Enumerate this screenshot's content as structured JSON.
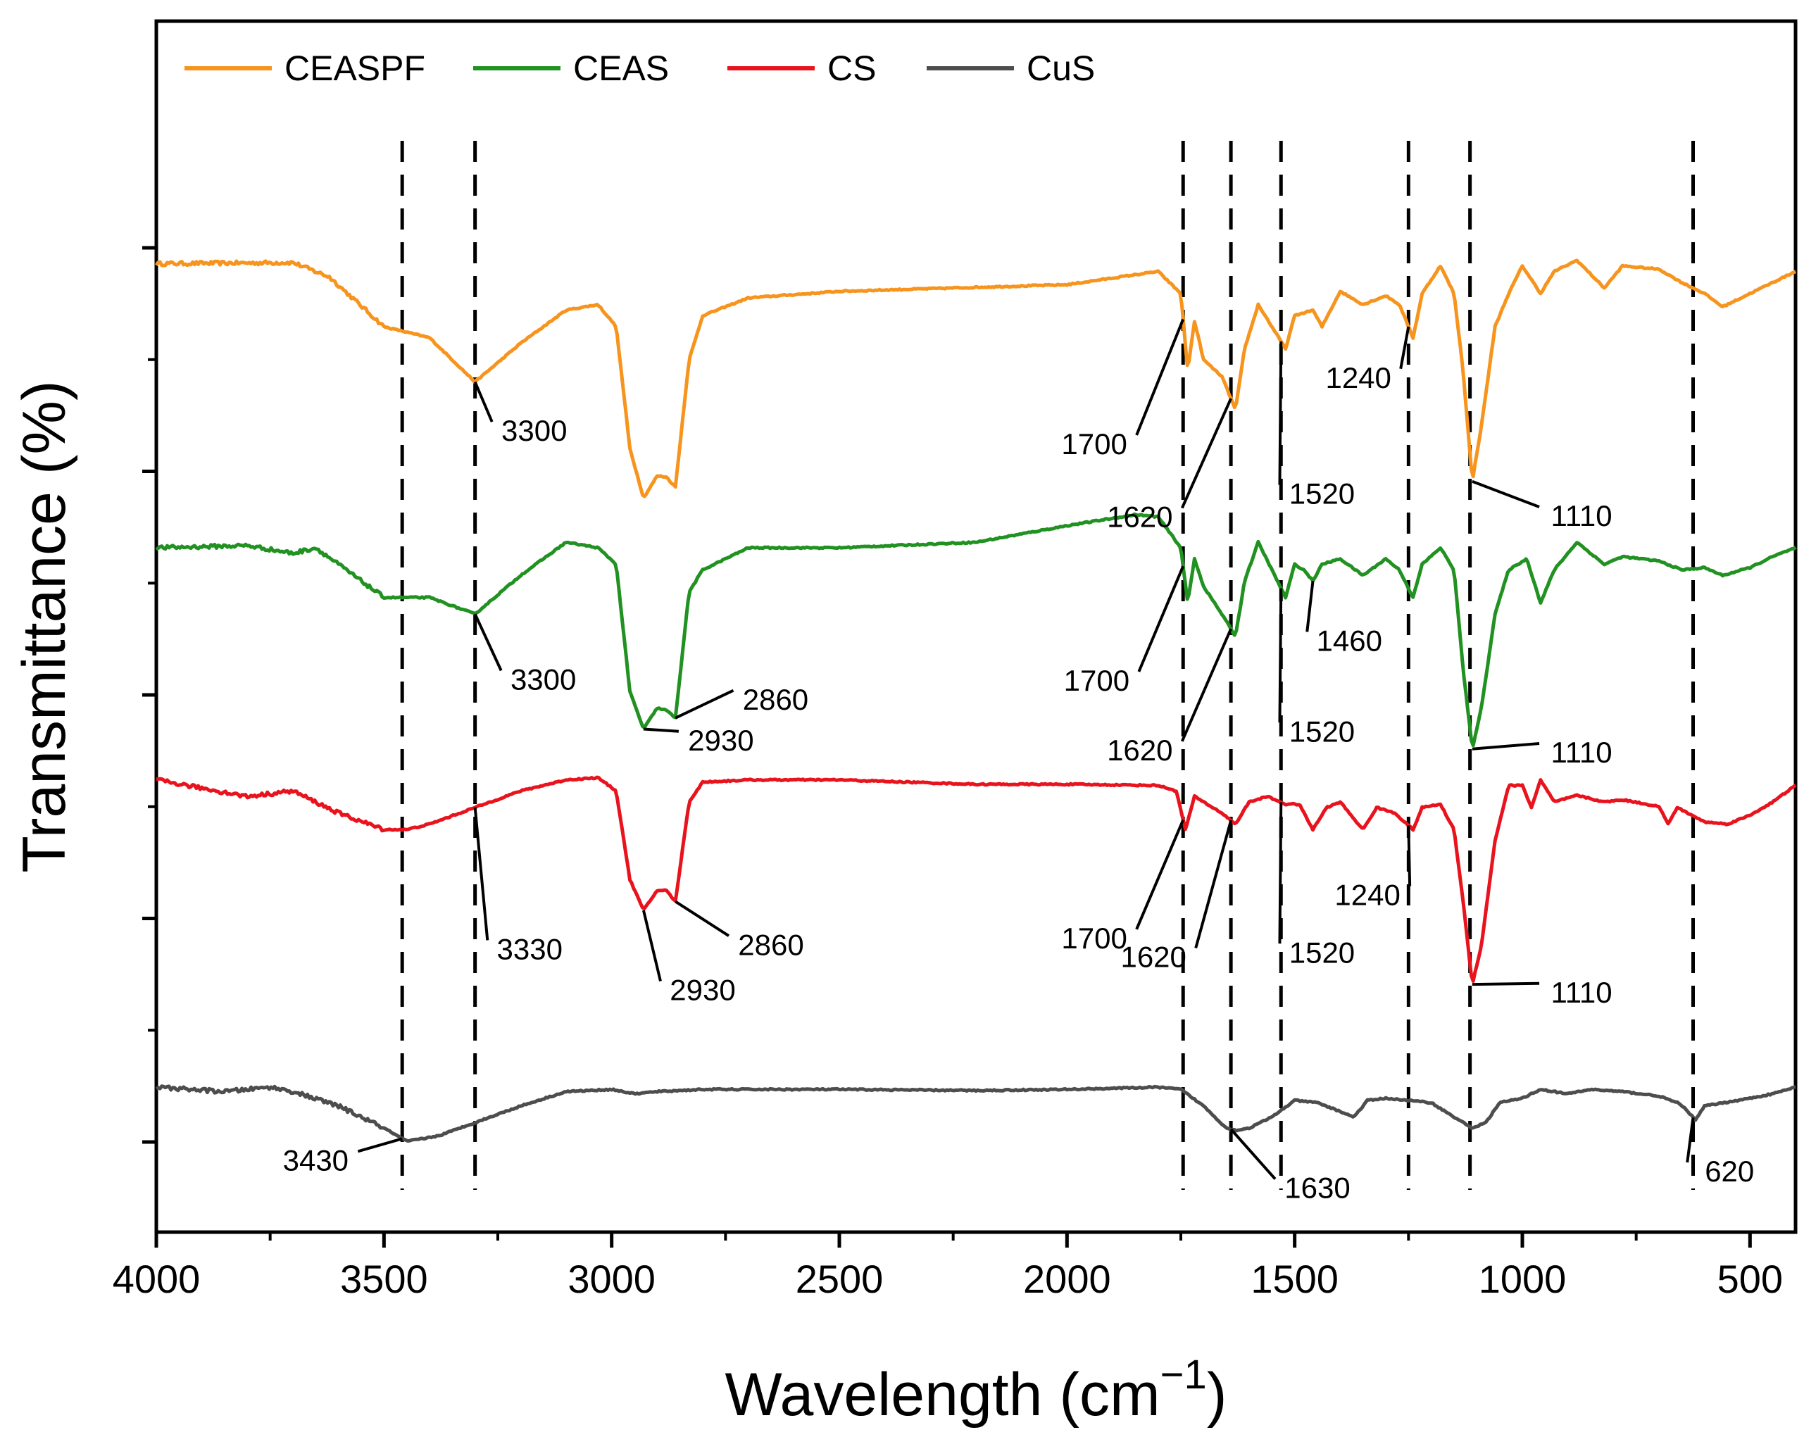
{
  "chart_data": {
    "type": "line",
    "title": "",
    "xlabel": "Wavelength (cm",
    "xlabel_superscript": "−1",
    "xlabel_close": ")",
    "ylabel": "Transmittance (%)",
    "xlim": [
      4000,
      400
    ],
    "x_ticks": [
      4000,
      3500,
      3000,
      2500,
      2000,
      1500,
      1000,
      500
    ],
    "x_tick_labels": [
      "4000",
      "3500",
      "3000",
      "2500",
      "2000",
      "1500",
      "1000",
      "500"
    ],
    "y_ticks_shown": false,
    "legend_position": "top-left",
    "series": [
      {
        "name": "CEASPF",
        "color": "#f7941d",
        "baseline": 0.857,
        "points": [
          [
            4000,
            0.857
          ],
          [
            3700,
            0.858
          ],
          [
            3620,
            0.845
          ],
          [
            3500,
            0.8
          ],
          [
            3400,
            0.79
          ],
          [
            3300,
            0.75
          ],
          [
            3200,
            0.785
          ],
          [
            3100,
            0.815
          ],
          [
            3030,
            0.82
          ],
          [
            2990,
            0.8
          ],
          [
            2960,
            0.69
          ],
          [
            2930,
            0.645
          ],
          [
            2900,
            0.665
          ],
          [
            2880,
            0.664
          ],
          [
            2860,
            0.655
          ],
          [
            2830,
            0.77
          ],
          [
            2800,
            0.81
          ],
          [
            2700,
            0.826
          ],
          [
            2500,
            0.832
          ],
          [
            2000,
            0.838
          ],
          [
            1800,
            0.85
          ],
          [
            1750,
            0.83
          ],
          [
            1735,
            0.76
          ],
          [
            1720,
            0.805
          ],
          [
            1700,
            0.77
          ],
          [
            1660,
            0.755
          ],
          [
            1630,
            0.725
          ],
          [
            1610,
            0.78
          ],
          [
            1580,
            0.82
          ],
          [
            1550,
            0.8
          ],
          [
            1520,
            0.78
          ],
          [
            1500,
            0.81
          ],
          [
            1460,
            0.815
          ],
          [
            1440,
            0.8
          ],
          [
            1400,
            0.832
          ],
          [
            1350,
            0.82
          ],
          [
            1300,
            0.828
          ],
          [
            1270,
            0.82
          ],
          [
            1240,
            0.79
          ],
          [
            1220,
            0.83
          ],
          [
            1180,
            0.855
          ],
          [
            1150,
            0.83
          ],
          [
            1130,
            0.76
          ],
          [
            1110,
            0.66
          ],
          [
            1090,
            0.71
          ],
          [
            1060,
            0.8
          ],
          [
            1030,
            0.83
          ],
          [
            1000,
            0.855
          ],
          [
            960,
            0.83
          ],
          [
            930,
            0.85
          ],
          [
            880,
            0.86
          ],
          [
            820,
            0.835
          ],
          [
            780,
            0.855
          ],
          [
            700,
            0.852
          ],
          [
            650,
            0.84
          ],
          [
            600,
            0.83
          ],
          [
            560,
            0.818
          ],
          [
            500,
            0.83
          ],
          [
            450,
            0.84
          ],
          [
            400,
            0.85
          ]
        ]
      },
      {
        "name": "CEAS",
        "color": "#219221",
        "baseline": 0.6,
        "points": [
          [
            4000,
            0.6
          ],
          [
            3800,
            0.602
          ],
          [
            3700,
            0.595
          ],
          [
            3650,
            0.6
          ],
          [
            3600,
            0.585
          ],
          [
            3500,
            0.555
          ],
          [
            3400,
            0.555
          ],
          [
            3300,
            0.54
          ],
          [
            3200,
            0.575
          ],
          [
            3100,
            0.605
          ],
          [
            3030,
            0.6
          ],
          [
            2990,
            0.585
          ],
          [
            2960,
            0.47
          ],
          [
            2930,
            0.436
          ],
          [
            2900,
            0.455
          ],
          [
            2880,
            0.453
          ],
          [
            2860,
            0.446
          ],
          [
            2830,
            0.56
          ],
          [
            2800,
            0.58
          ],
          [
            2700,
            0.6
          ],
          [
            2500,
            0.6
          ],
          [
            2200,
            0.605
          ],
          [
            2000,
            0.62
          ],
          [
            1850,
            0.63
          ],
          [
            1800,
            0.628
          ],
          [
            1750,
            0.6
          ],
          [
            1735,
            0.55
          ],
          [
            1720,
            0.59
          ],
          [
            1700,
            0.565
          ],
          [
            1660,
            0.54
          ],
          [
            1630,
            0.52
          ],
          [
            1610,
            0.57
          ],
          [
            1580,
            0.605
          ],
          [
            1550,
            0.58
          ],
          [
            1520,
            0.555
          ],
          [
            1500,
            0.585
          ],
          [
            1480,
            0.58
          ],
          [
            1460,
            0.57
          ],
          [
            1440,
            0.585
          ],
          [
            1400,
            0.59
          ],
          [
            1350,
            0.575
          ],
          [
            1300,
            0.59
          ],
          [
            1270,
            0.58
          ],
          [
            1240,
            0.555
          ],
          [
            1220,
            0.585
          ],
          [
            1180,
            0.6
          ],
          [
            1150,
            0.58
          ],
          [
            1130,
            0.49
          ],
          [
            1110,
            0.418
          ],
          [
            1090,
            0.455
          ],
          [
            1060,
            0.54
          ],
          [
            1030,
            0.58
          ],
          [
            990,
            0.59
          ],
          [
            960,
            0.55
          ],
          [
            930,
            0.58
          ],
          [
            880,
            0.605
          ],
          [
            820,
            0.585
          ],
          [
            780,
            0.592
          ],
          [
            700,
            0.588
          ],
          [
            650,
            0.58
          ],
          [
            600,
            0.582
          ],
          [
            560,
            0.575
          ],
          [
            500,
            0.582
          ],
          [
            450,
            0.592
          ],
          [
            400,
            0.6
          ]
        ]
      },
      {
        "name": "CS",
        "color": "#e8131d",
        "baseline": 0.39,
        "points": [
          [
            4000,
            0.39
          ],
          [
            3800,
            0.375
          ],
          [
            3700,
            0.38
          ],
          [
            3650,
            0.37
          ],
          [
            3600,
            0.36
          ],
          [
            3500,
            0.345
          ],
          [
            3450,
            0.345
          ],
          [
            3400,
            0.35
          ],
          [
            3300,
            0.365
          ],
          [
            3200,
            0.38
          ],
          [
            3100,
            0.39
          ],
          [
            3030,
            0.392
          ],
          [
            2990,
            0.38
          ],
          [
            2960,
            0.3
          ],
          [
            2930,
            0.272
          ],
          [
            2900,
            0.29
          ],
          [
            2880,
            0.29
          ],
          [
            2860,
            0.28
          ],
          [
            2830,
            0.37
          ],
          [
            2800,
            0.388
          ],
          [
            2700,
            0.39
          ],
          [
            2500,
            0.39
          ],
          [
            2200,
            0.386
          ],
          [
            2000,
            0.386
          ],
          [
            1800,
            0.385
          ],
          [
            1760,
            0.38
          ],
          [
            1740,
            0.345
          ],
          [
            1720,
            0.375
          ],
          [
            1700,
            0.37
          ],
          [
            1660,
            0.36
          ],
          [
            1630,
            0.35
          ],
          [
            1600,
            0.37
          ],
          [
            1560,
            0.375
          ],
          [
            1520,
            0.368
          ],
          [
            1490,
            0.368
          ],
          [
            1460,
            0.345
          ],
          [
            1430,
            0.365
          ],
          [
            1400,
            0.37
          ],
          [
            1350,
            0.345
          ],
          [
            1320,
            0.365
          ],
          [
            1280,
            0.36
          ],
          [
            1240,
            0.345
          ],
          [
            1220,
            0.365
          ],
          [
            1180,
            0.368
          ],
          [
            1150,
            0.345
          ],
          [
            1130,
            0.28
          ],
          [
            1110,
            0.205
          ],
          [
            1090,
            0.24
          ],
          [
            1060,
            0.335
          ],
          [
            1030,
            0.385
          ],
          [
            1000,
            0.385
          ],
          [
            980,
            0.365
          ],
          [
            960,
            0.39
          ],
          [
            930,
            0.37
          ],
          [
            880,
            0.376
          ],
          [
            820,
            0.37
          ],
          [
            780,
            0.372
          ],
          [
            700,
            0.366
          ],
          [
            680,
            0.35
          ],
          [
            660,
            0.365
          ],
          [
            600,
            0.352
          ],
          [
            550,
            0.35
          ],
          [
            500,
            0.358
          ],
          [
            450,
            0.37
          ],
          [
            400,
            0.385
          ]
        ]
      },
      {
        "name": "CuS",
        "color": "#4d4d4d",
        "baseline": 0.11,
        "points": [
          [
            4000,
            0.112
          ],
          [
            3850,
            0.108
          ],
          [
            3750,
            0.112
          ],
          [
            3700,
            0.108
          ],
          [
            3600,
            0.095
          ],
          [
            3500,
            0.075
          ],
          [
            3450,
            0.063
          ],
          [
            3380,
            0.068
          ],
          [
            3300,
            0.08
          ],
          [
            3200,
            0.095
          ],
          [
            3100,
            0.108
          ],
          [
            3000,
            0.11
          ],
          [
            2950,
            0.106
          ],
          [
            2900,
            0.108
          ],
          [
            2800,
            0.11
          ],
          [
            2500,
            0.11
          ],
          [
            2200,
            0.109
          ],
          [
            2000,
            0.11
          ],
          [
            1800,
            0.112
          ],
          [
            1750,
            0.11
          ],
          [
            1700,
            0.095
          ],
          [
            1650,
            0.075
          ],
          [
            1630,
            0.073
          ],
          [
            1600,
            0.075
          ],
          [
            1550,
            0.085
          ],
          [
            1500,
            0.1
          ],
          [
            1450,
            0.098
          ],
          [
            1400,
            0.09
          ],
          [
            1370,
            0.085
          ],
          [
            1340,
            0.1
          ],
          [
            1300,
            0.102
          ],
          [
            1250,
            0.1
          ],
          [
            1200,
            0.098
          ],
          [
            1150,
            0.085
          ],
          [
            1110,
            0.075
          ],
          [
            1080,
            0.08
          ],
          [
            1050,
            0.098
          ],
          [
            1000,
            0.102
          ],
          [
            960,
            0.11
          ],
          [
            900,
            0.106
          ],
          [
            850,
            0.11
          ],
          [
            780,
            0.108
          ],
          [
            700,
            0.104
          ],
          [
            660,
            0.098
          ],
          [
            640,
            0.092
          ],
          [
            620,
            0.082
          ],
          [
            600,
            0.095
          ],
          [
            500,
            0.102
          ],
          [
            450,
            0.106
          ],
          [
            400,
            0.112
          ]
        ]
      }
    ],
    "reference_lines": [
      3460,
      3300,
      1745,
      1640,
      1530,
      1250,
      1115,
      625
    ],
    "annotations": [
      {
        "label": "3300",
        "series": "CEASPF",
        "wn": 3300,
        "label_wn": 3170,
        "label_y": 0.705
      },
      {
        "label": "1700",
        "series": "CEASPF",
        "wn": 1745,
        "label_wn": 1940,
        "label_y": 0.693
      },
      {
        "label": "1620",
        "series": "CEASPF",
        "wn": 1640,
        "label_wn": 1840,
        "label_y": 0.627
      },
      {
        "label": "1520",
        "series": "CEASPF",
        "wn": 1530,
        "label_wn": 1440,
        "label_y": 0.648
      },
      {
        "label": "1240",
        "series": "CEASPF",
        "wn": 1250,
        "label_wn": 1360,
        "label_y": 0.753
      },
      {
        "label": "1110",
        "series": "CEASPF",
        "wn": 1110,
        "label_wn": 870,
        "label_y": 0.628
      },
      {
        "label": "3300",
        "series": "CEAS",
        "wn": 3300,
        "label_wn": 3150,
        "label_y": 0.48
      },
      {
        "label": "2860",
        "series": "CEAS",
        "wn": 2860,
        "label_wn": 2640,
        "label_y": 0.462
      },
      {
        "label": "2930",
        "series": "CEAS",
        "wn": 2930,
        "label_wn": 2760,
        "label_y": 0.425
      },
      {
        "label": "1700",
        "series": "CEAS",
        "wn": 1745,
        "label_wn": 1935,
        "label_y": 0.479
      },
      {
        "label": "1620",
        "series": "CEAS",
        "wn": 1640,
        "label_wn": 1840,
        "label_y": 0.416
      },
      {
        "label": "1460",
        "series": "CEAS",
        "wn": 1460,
        "label_wn": 1380,
        "label_y": 0.515
      },
      {
        "label": "1520",
        "series": "CEAS",
        "wn": 1530,
        "label_wn": 1440,
        "label_y": 0.433
      },
      {
        "label": "1110",
        "series": "CEAS",
        "wn": 1110,
        "label_wn": 870,
        "label_y": 0.414
      },
      {
        "label": "3330",
        "series": "CS",
        "wn": 3300,
        "label_wn": 3180,
        "label_y": 0.236
      },
      {
        "label": "2860",
        "series": "CS",
        "wn": 2860,
        "label_wn": 2650,
        "label_y": 0.24
      },
      {
        "label": "2930",
        "series": "CS",
        "wn": 2930,
        "label_wn": 2800,
        "label_y": 0.199
      },
      {
        "label": "1700",
        "series": "CS",
        "wn": 1745,
        "label_wn": 1940,
        "label_y": 0.246
      },
      {
        "label": "1620",
        "series": "CS",
        "wn": 1640,
        "label_wn": 1810,
        "label_y": 0.229
      },
      {
        "label": "1520",
        "series": "CS",
        "wn": 1530,
        "label_wn": 1440,
        "label_y": 0.233
      },
      {
        "label": "1240",
        "series": "CS",
        "wn": 1250,
        "label_wn": 1340,
        "label_y": 0.285
      },
      {
        "label": "1110",
        "series": "CS",
        "wn": 1110,
        "label_wn": 870,
        "label_y": 0.197
      },
      {
        "label": "3430",
        "series": "CuS",
        "wn": 3460,
        "label_wn": 3650,
        "label_y": 0.045
      },
      {
        "label": "1630",
        "series": "CuS",
        "wn": 1640,
        "label_wn": 1450,
        "label_y": 0.02
      },
      {
        "label": "620",
        "series": "CuS",
        "wn": 625,
        "label_wn": 545,
        "label_y": 0.035
      }
    ]
  }
}
